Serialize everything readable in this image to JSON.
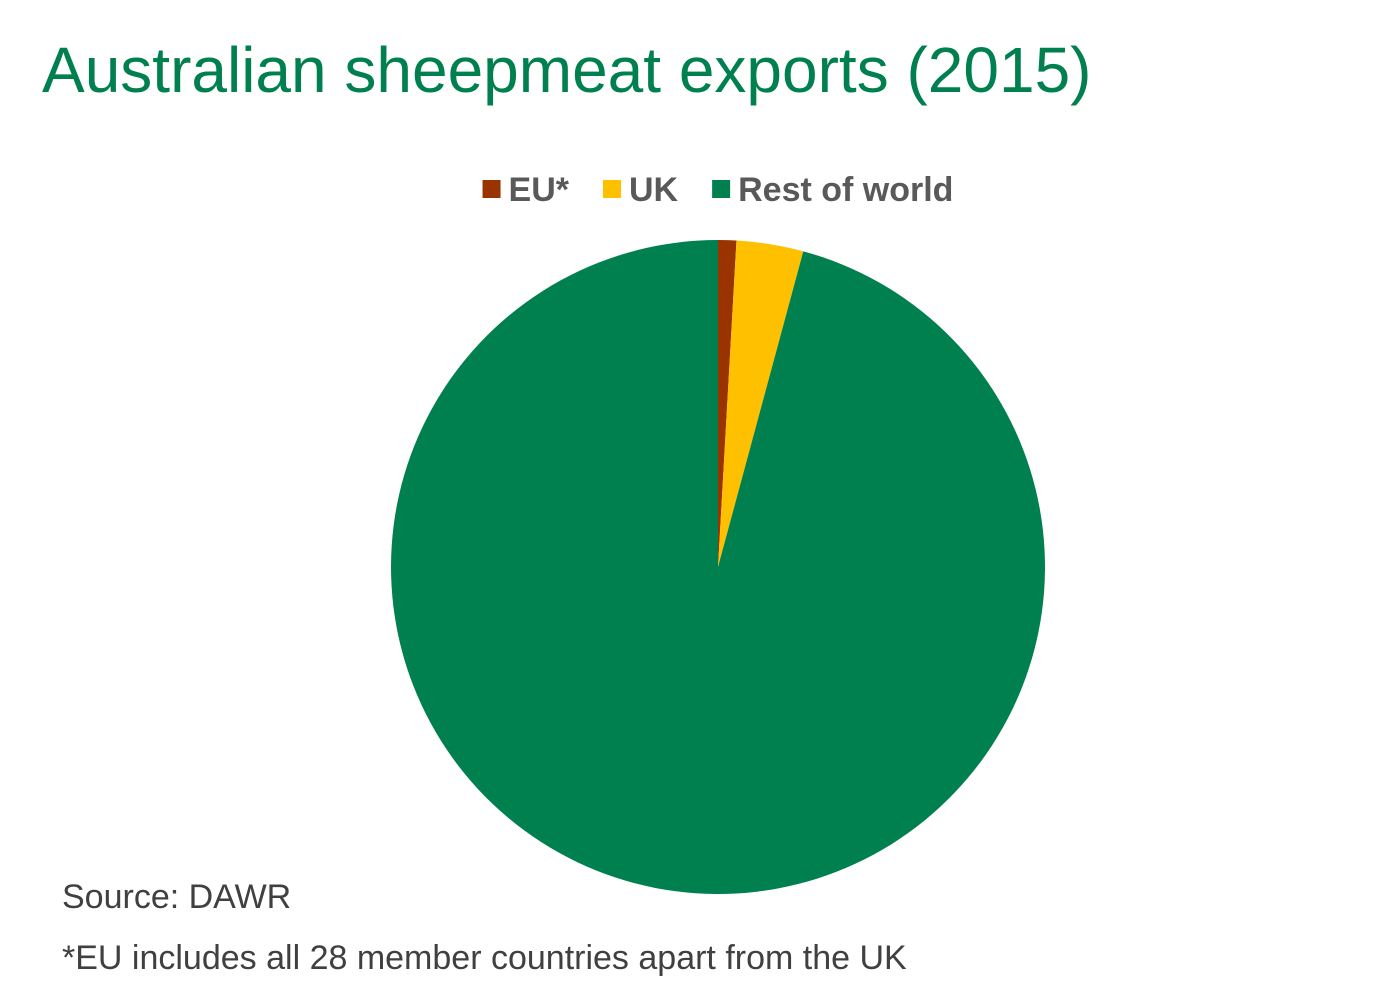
{
  "chart_data": {
    "type": "pie",
    "title": "Australian sheepmeat exports (2015)",
    "categories": [
      "EU*",
      "UK",
      "Rest of world"
    ],
    "values": [
      0.9,
      3.3,
      95.8
    ],
    "colors": [
      "#993300",
      "#ffc000",
      "#00804f"
    ],
    "legend": "top",
    "source": "Source: DAWR",
    "note": "*EU includes all 28 member countries apart from the UK"
  }
}
